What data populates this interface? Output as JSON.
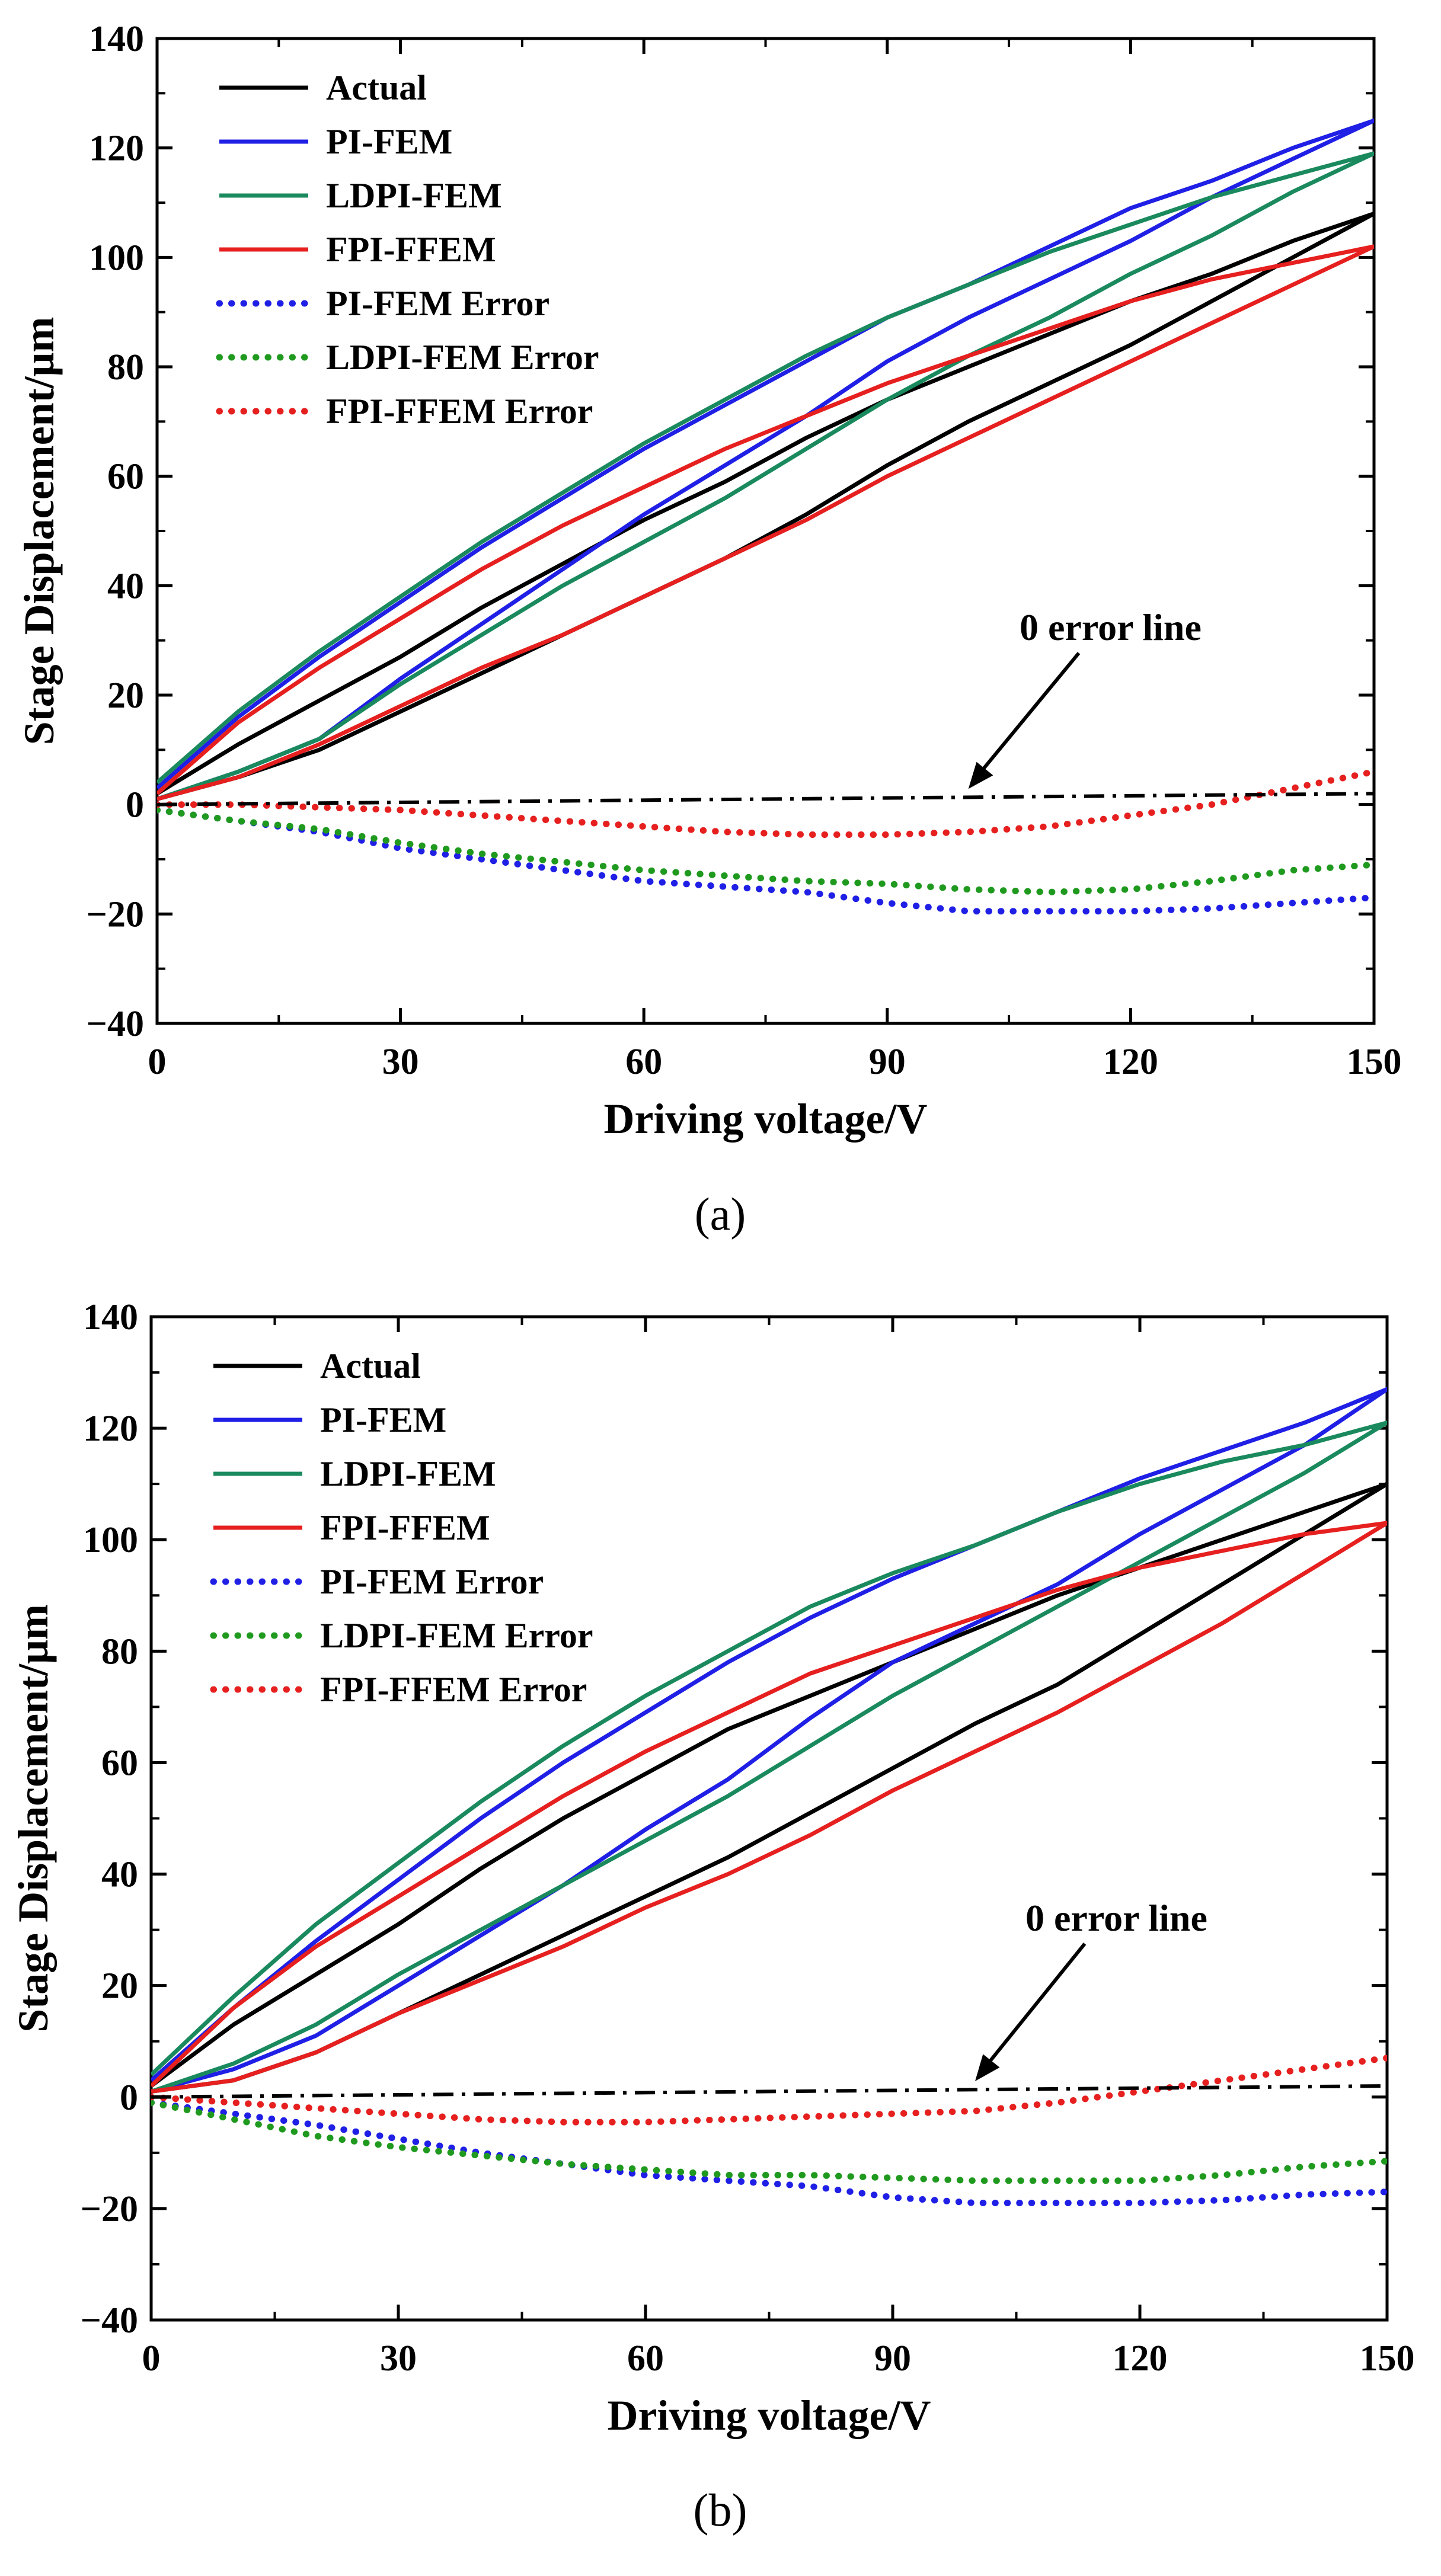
{
  "chart_data": [
    {
      "type": "line",
      "panel": "a",
      "caption": "(a)",
      "xlabel": "Driving voltage/V",
      "ylabel": "Stage Displacement/μm",
      "xlim": [
        0,
        150
      ],
      "ylim": [
        -40,
        140
      ],
      "xticks": [
        "0",
        "30",
        "60",
        "90",
        "120",
        "150"
      ],
      "yticks": [
        "−40",
        "−20",
        "0",
        "20",
        "40",
        "60",
        "80",
        "100",
        "120",
        "140"
      ],
      "annotation": {
        "text": "0 error line",
        "arrow_to": [
          100,
          2
        ]
      },
      "series": [
        {
          "name": "Actual",
          "style": "solid",
          "color": "#000000",
          "x": [
            0,
            10,
            20,
            30,
            40,
            50,
            60,
            70,
            80,
            90,
            100,
            110,
            120,
            130,
            140,
            150,
            140,
            130,
            120,
            110,
            100,
            90,
            80,
            70,
            60,
            50,
            40,
            30,
            20,
            10,
            0
          ],
          "y": [
            2,
            11,
            19,
            27,
            36,
            44,
            52,
            59,
            67,
            74,
            80,
            86,
            92,
            97,
            103,
            108,
            100,
            92,
            84,
            77,
            70,
            62,
            53,
            45,
            38,
            31,
            24,
            17,
            10,
            5,
            1
          ]
        },
        {
          "name": "PI-FEM",
          "style": "solid",
          "color": "#1f1fe6",
          "x": [
            0,
            10,
            20,
            30,
            40,
            50,
            60,
            70,
            80,
            90,
            100,
            110,
            120,
            130,
            140,
            150,
            140,
            130,
            120,
            110,
            100,
            90,
            80,
            70,
            60,
            50,
            40,
            30,
            20,
            10,
            0
          ],
          "y": [
            3,
            16,
            27,
            37,
            47,
            56,
            65,
            73,
            81,
            89,
            95,
            102,
            109,
            114,
            120,
            125,
            118,
            111,
            103,
            96,
            89,
            81,
            71,
            62,
            53,
            43,
            33,
            23,
            12,
            6,
            1
          ]
        },
        {
          "name": "LDPI-FEM",
          "style": "solid",
          "color": "#1a8a5e",
          "x": [
            0,
            10,
            20,
            30,
            40,
            50,
            60,
            70,
            80,
            90,
            100,
            110,
            120,
            130,
            140,
            150,
            140,
            130,
            120,
            110,
            100,
            90,
            80,
            70,
            60,
            50,
            40,
            30,
            20,
            10,
            0
          ],
          "y": [
            4,
            17,
            28,
            38,
            48,
            57,
            66,
            74,
            82,
            89,
            95,
            101,
            106,
            111,
            115,
            119,
            112,
            104,
            97,
            89,
            82,
            74,
            65,
            56,
            48,
            40,
            31,
            22,
            12,
            6,
            1
          ]
        },
        {
          "name": "FPI-FFEM",
          "style": "solid",
          "color": "#e61f1f",
          "x": [
            0,
            10,
            20,
            30,
            40,
            50,
            60,
            70,
            80,
            90,
            100,
            110,
            120,
            130,
            140,
            150,
            140,
            130,
            120,
            110,
            100,
            90,
            80,
            70,
            60,
            50,
            40,
            30,
            20,
            10,
            0
          ],
          "y": [
            2,
            15,
            25,
            34,
            43,
            51,
            58,
            65,
            71,
            77,
            82,
            87,
            92,
            96,
            99,
            102,
            95,
            88,
            81,
            74,
            67,
            60,
            52,
            45,
            38,
            31,
            25,
            18,
            11,
            5,
            1
          ]
        },
        {
          "name": "PI-FEM  Error",
          "style": "dotted",
          "color": "#1f1fe6",
          "x": [
            0,
            10,
            20,
            30,
            40,
            50,
            60,
            70,
            80,
            90,
            100,
            110,
            120,
            130,
            140,
            150
          ],
          "y": [
            -1,
            -3,
            -5,
            -8,
            -10,
            -12,
            -14,
            -15,
            -16,
            -18,
            -19.5,
            -19.5,
            -19.5,
            -19,
            -18,
            -17
          ]
        },
        {
          "name": "LDPI-FEM  Error",
          "style": "dotted",
          "color": "#1f9a1f",
          "x": [
            0,
            10,
            20,
            30,
            40,
            50,
            60,
            70,
            80,
            90,
            100,
            110,
            120,
            130,
            140,
            150
          ],
          "y": [
            -1,
            -3,
            -4.5,
            -7,
            -9,
            -10.5,
            -12,
            -13,
            -14,
            -14.5,
            -15.5,
            -16,
            -15.5,
            -14,
            -12,
            -11
          ]
        },
        {
          "name": "FPI-FFEM Error",
          "style": "dotted",
          "color": "#e61f1f",
          "x": [
            0,
            10,
            20,
            30,
            40,
            50,
            60,
            70,
            80,
            90,
            100,
            110,
            120,
            130,
            140,
            150
          ],
          "y": [
            0,
            0,
            -0.5,
            -1,
            -2,
            -3,
            -4,
            -5,
            -5.5,
            -5.5,
            -5,
            -4,
            -2,
            0,
            3,
            6
          ]
        },
        {
          "name": "0 error line",
          "style": "dashdot",
          "color": "#000000",
          "legend": false,
          "x": [
            0,
            150
          ],
          "y": [
            0,
            2
          ]
        }
      ]
    },
    {
      "type": "line",
      "panel": "b",
      "caption": "(b)",
      "xlabel": "Driving voltage/V",
      "ylabel": "Stage Displacement/μm",
      "xlim": [
        0,
        150
      ],
      "ylim": [
        -40,
        140
      ],
      "xticks": [
        "0",
        "30",
        "60",
        "90",
        "120",
        "150"
      ],
      "yticks": [
        "−40",
        "−20",
        "0",
        "20",
        "40",
        "60",
        "80",
        "100",
        "120",
        "140"
      ],
      "annotation": {
        "text": "0 error line",
        "arrow_to": [
          100,
          2
        ]
      },
      "series": [
        {
          "name": "Actual",
          "style": "solid",
          "color": "#000000",
          "x": [
            0,
            10,
            20,
            30,
            40,
            50,
            60,
            70,
            80,
            90,
            100,
            110,
            120,
            130,
            140,
            150,
            140,
            130,
            120,
            110,
            100,
            90,
            80,
            70,
            60,
            50,
            40,
            30,
            20,
            10,
            0
          ],
          "y": [
            2,
            13,
            22,
            31,
            41,
            50,
            58,
            66,
            72,
            78,
            84,
            90,
            95,
            100,
            105,
            110,
            101,
            92,
            83,
            74,
            67,
            59,
            51,
            43,
            36,
            29,
            22,
            15,
            8,
            3,
            1
          ]
        },
        {
          "name": "PI-FEM",
          "style": "solid",
          "color": "#1f1fe6",
          "x": [
            0,
            10,
            20,
            30,
            40,
            50,
            60,
            70,
            80,
            90,
            100,
            110,
            120,
            130,
            140,
            150,
            140,
            130,
            120,
            110,
            100,
            90,
            80,
            70,
            60,
            50,
            40,
            30,
            20,
            10,
            0
          ],
          "y": [
            3,
            16,
            28,
            39,
            50,
            60,
            69,
            78,
            86,
            93,
            99,
            105,
            111,
            116,
            121,
            127,
            117,
            109,
            101,
            92,
            85,
            78,
            68,
            57,
            48,
            38,
            29,
            20,
            11,
            5,
            1
          ]
        },
        {
          "name": "LDPI-FEM",
          "style": "solid",
          "color": "#1a8a5e",
          "x": [
            0,
            10,
            20,
            30,
            40,
            50,
            60,
            70,
            80,
            90,
            100,
            110,
            120,
            130,
            140,
            150,
            140,
            130,
            120,
            110,
            100,
            90,
            80,
            70,
            60,
            50,
            40,
            30,
            20,
            10,
            0
          ],
          "y": [
            4,
            18,
            31,
            42,
            53,
            63,
            72,
            80,
            88,
            94,
            99,
            105,
            110,
            114,
            117,
            121,
            112,
            104,
            96,
            88,
            80,
            72,
            63,
            54,
            46,
            38,
            30,
            22,
            13,
            6,
            1
          ]
        },
        {
          "name": "FPI-FFEM",
          "style": "solid",
          "color": "#e61f1f",
          "x": [
            0,
            10,
            20,
            30,
            40,
            50,
            60,
            70,
            80,
            90,
            100,
            110,
            120,
            130,
            140,
            150,
            140,
            130,
            120,
            110,
            100,
            90,
            80,
            70,
            60,
            50,
            40,
            30,
            20,
            10,
            0
          ],
          "y": [
            2,
            16,
            27,
            36,
            45,
            54,
            62,
            69,
            76,
            81,
            86,
            91,
            95,
            98,
            101,
            103,
            94,
            85,
            77,
            69,
            62,
            55,
            47,
            40,
            34,
            27,
            21,
            15,
            8,
            3,
            1
          ]
        },
        {
          "name": "PI-FEM  Error",
          "style": "dotted",
          "color": "#1f1fe6",
          "x": [
            0,
            10,
            20,
            30,
            40,
            50,
            60,
            70,
            80,
            90,
            100,
            110,
            120,
            130,
            140,
            150
          ],
          "y": [
            -1,
            -3,
            -5,
            -7.5,
            -10,
            -12,
            -14,
            -15,
            -16,
            -18,
            -19,
            -19,
            -19,
            -18.5,
            -17.5,
            -17
          ]
        },
        {
          "name": "LDPI-FEM  Error",
          "style": "dotted",
          "color": "#1f9a1f",
          "x": [
            0,
            10,
            20,
            30,
            40,
            50,
            60,
            70,
            80,
            90,
            100,
            110,
            120,
            130,
            140,
            150
          ],
          "y": [
            -1,
            -4,
            -7,
            -9,
            -10.5,
            -12,
            -13,
            -14,
            -14,
            -14.5,
            -15,
            -15,
            -15,
            -14,
            -12.5,
            -11.5
          ]
        },
        {
          "name": "FPI-FFEM Error",
          "style": "dotted",
          "color": "#e61f1f",
          "x": [
            0,
            10,
            20,
            30,
            40,
            50,
            60,
            70,
            80,
            90,
            100,
            110,
            120,
            130,
            140,
            150
          ],
          "y": [
            0,
            -1,
            -2,
            -3,
            -4,
            -4.5,
            -4.5,
            -4,
            -3.5,
            -3,
            -2.5,
            -1,
            1,
            3,
            5,
            7
          ]
        },
        {
          "name": "0 error line",
          "style": "dashdot",
          "color": "#000000",
          "legend": false,
          "x": [
            0,
            150
          ],
          "y": [
            0,
            2
          ]
        }
      ]
    }
  ]
}
